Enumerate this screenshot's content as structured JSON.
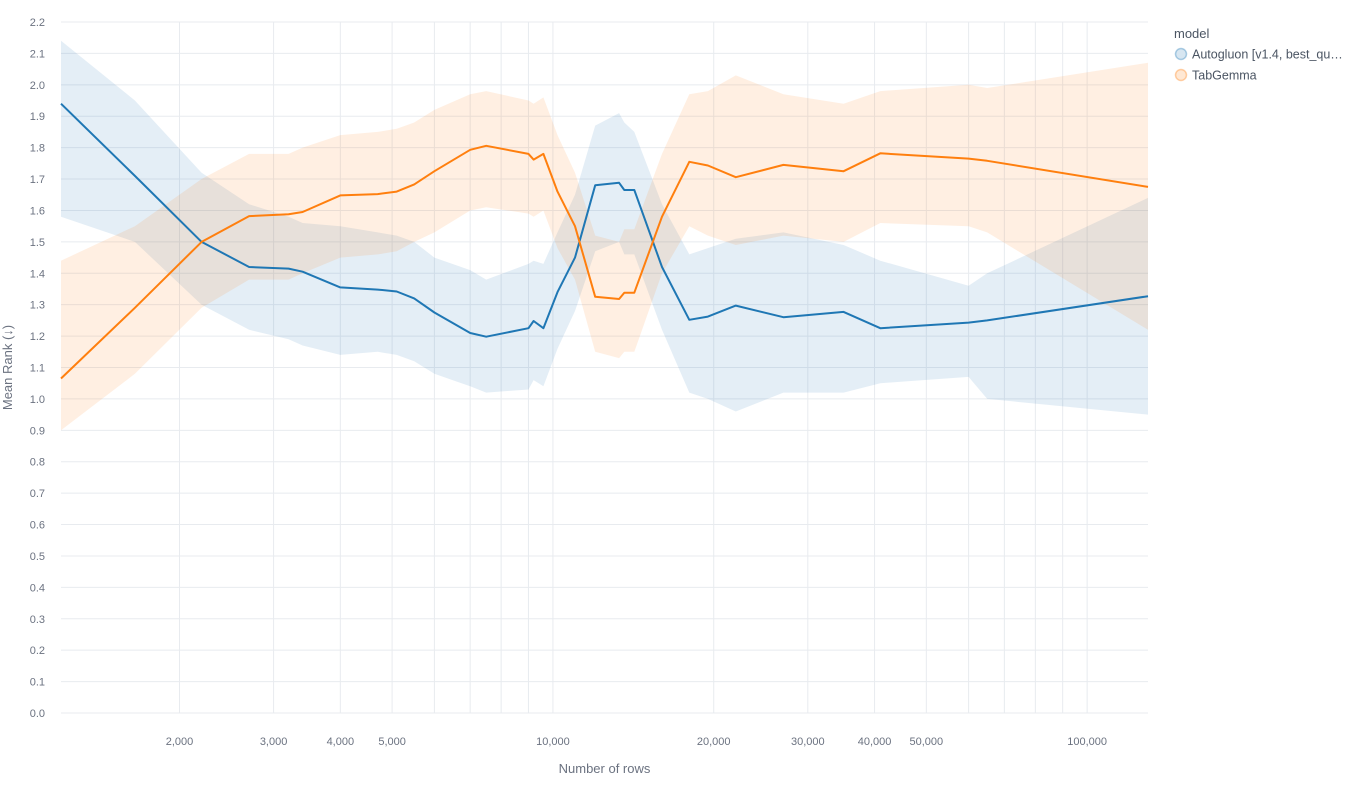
{
  "chart_data": {
    "type": "line",
    "title": "",
    "xlabel": "Number of rows",
    "ylabel": "Mean Rank (↓)",
    "xscale": "log",
    "xlim": [
      1200,
      130000
    ],
    "ylim": [
      0,
      2.2
    ],
    "grid": true,
    "legend_title": "model",
    "legend_position": "top-right",
    "yticks": [
      0,
      0.1,
      0.2,
      0.3,
      0.4,
      0.5,
      0.6,
      0.7,
      0.8,
      0.9,
      1.0,
      1.1,
      1.2,
      1.3,
      1.4,
      1.5,
      1.6,
      1.7,
      1.8,
      1.9,
      2.0,
      2.1,
      2.2
    ],
    "ytick_labels": [
      "0.0",
      "0.1",
      "0.2",
      "0.3",
      "0.4",
      "0.5",
      "0.6",
      "0.7",
      "0.8",
      "0.9",
      "1.0",
      "1.1",
      "1.2",
      "1.3",
      "1.4",
      "1.5",
      "1.6",
      "1.7",
      "1.8",
      "1.9",
      "2.0",
      "2.1",
      "2.2"
    ],
    "xticks": [
      2000,
      3000,
      4000,
      5000,
      10000,
      20000,
      30000,
      40000,
      50000,
      100000
    ],
    "xtick_labels": [
      "2,000",
      "3,000",
      "4,000",
      "5,000",
      "10,000",
      "20,000",
      "30,000",
      "40,000",
      "50,000",
      "100,000"
    ],
    "series": [
      {
        "name": "Autogluon [v1.4, best_qu…",
        "color": "#1f77b4",
        "band_color": "#1f77b4",
        "x": [
          1200,
          1650,
          2200,
          2700,
          3200,
          3400,
          4000,
          4700,
          5100,
          5500,
          6000,
          7000,
          7500,
          9000,
          9200,
          9600,
          10200,
          11000,
          12000,
          13300,
          13600,
          14200,
          16000,
          18000,
          19500,
          22000,
          27000,
          35000,
          41000,
          60000,
          65000,
          130000
        ],
        "values": [
          1.94,
          1.71,
          1.5,
          1.42,
          1.415,
          1.405,
          1.355,
          1.348,
          1.342,
          1.32,
          1.275,
          1.21,
          1.198,
          1.225,
          1.248,
          1.225,
          1.34,
          1.45,
          1.68,
          1.688,
          1.665,
          1.665,
          1.42,
          1.252,
          1.262,
          1.297,
          1.26,
          1.277,
          1.225,
          1.243,
          1.25,
          1.327
        ],
        "upper": [
          2.14,
          1.95,
          1.72,
          1.62,
          1.58,
          1.56,
          1.55,
          1.53,
          1.52,
          1.5,
          1.45,
          1.41,
          1.38,
          1.43,
          1.44,
          1.43,
          1.53,
          1.65,
          1.87,
          1.91,
          1.88,
          1.85,
          1.62,
          1.46,
          1.48,
          1.51,
          1.53,
          1.49,
          1.44,
          1.36,
          1.4,
          1.64
        ],
        "lower": [
          1.58,
          1.5,
          1.3,
          1.22,
          1.19,
          1.17,
          1.14,
          1.15,
          1.14,
          1.12,
          1.08,
          1.04,
          1.02,
          1.03,
          1.06,
          1.04,
          1.16,
          1.28,
          1.47,
          1.5,
          1.46,
          1.46,
          1.22,
          1.02,
          1.0,
          0.96,
          1.02,
          1.02,
          1.05,
          1.07,
          1.0,
          0.95
        ]
      },
      {
        "name": "TabGemma",
        "color": "#ff7f0e",
        "band_color": "#ff7f0e",
        "x": [
          1200,
          1650,
          2200,
          2700,
          3200,
          3400,
          4000,
          4700,
          5100,
          5500,
          6000,
          7000,
          7500,
          9000,
          9200,
          9600,
          10200,
          11000,
          12000,
          13300,
          13600,
          14200,
          16000,
          18000,
          19500,
          22000,
          27000,
          35000,
          41000,
          60000,
          65000,
          130000
        ],
        "values": [
          1.065,
          1.29,
          1.5,
          1.582,
          1.588,
          1.595,
          1.648,
          1.652,
          1.66,
          1.683,
          1.725,
          1.793,
          1.806,
          1.78,
          1.762,
          1.78,
          1.66,
          1.55,
          1.325,
          1.318,
          1.338,
          1.338,
          1.58,
          1.755,
          1.743,
          1.706,
          1.745,
          1.725,
          1.782,
          1.765,
          1.758,
          1.675
        ],
        "upper": [
          1.44,
          1.55,
          1.7,
          1.78,
          1.78,
          1.8,
          1.84,
          1.85,
          1.86,
          1.88,
          1.92,
          1.97,
          1.98,
          1.95,
          1.94,
          1.96,
          1.84,
          1.72,
          1.52,
          1.5,
          1.54,
          1.54,
          1.78,
          1.97,
          1.98,
          2.03,
          1.97,
          1.94,
          1.98,
          2.0,
          1.99,
          2.07
        ],
        "lower": [
          0.9,
          1.08,
          1.29,
          1.38,
          1.38,
          1.4,
          1.45,
          1.46,
          1.47,
          1.5,
          1.53,
          1.6,
          1.61,
          1.59,
          1.58,
          1.6,
          1.48,
          1.38,
          1.15,
          1.13,
          1.15,
          1.15,
          1.4,
          1.55,
          1.52,
          1.49,
          1.52,
          1.5,
          1.56,
          1.55,
          1.53,
          1.22
        ]
      }
    ]
  }
}
